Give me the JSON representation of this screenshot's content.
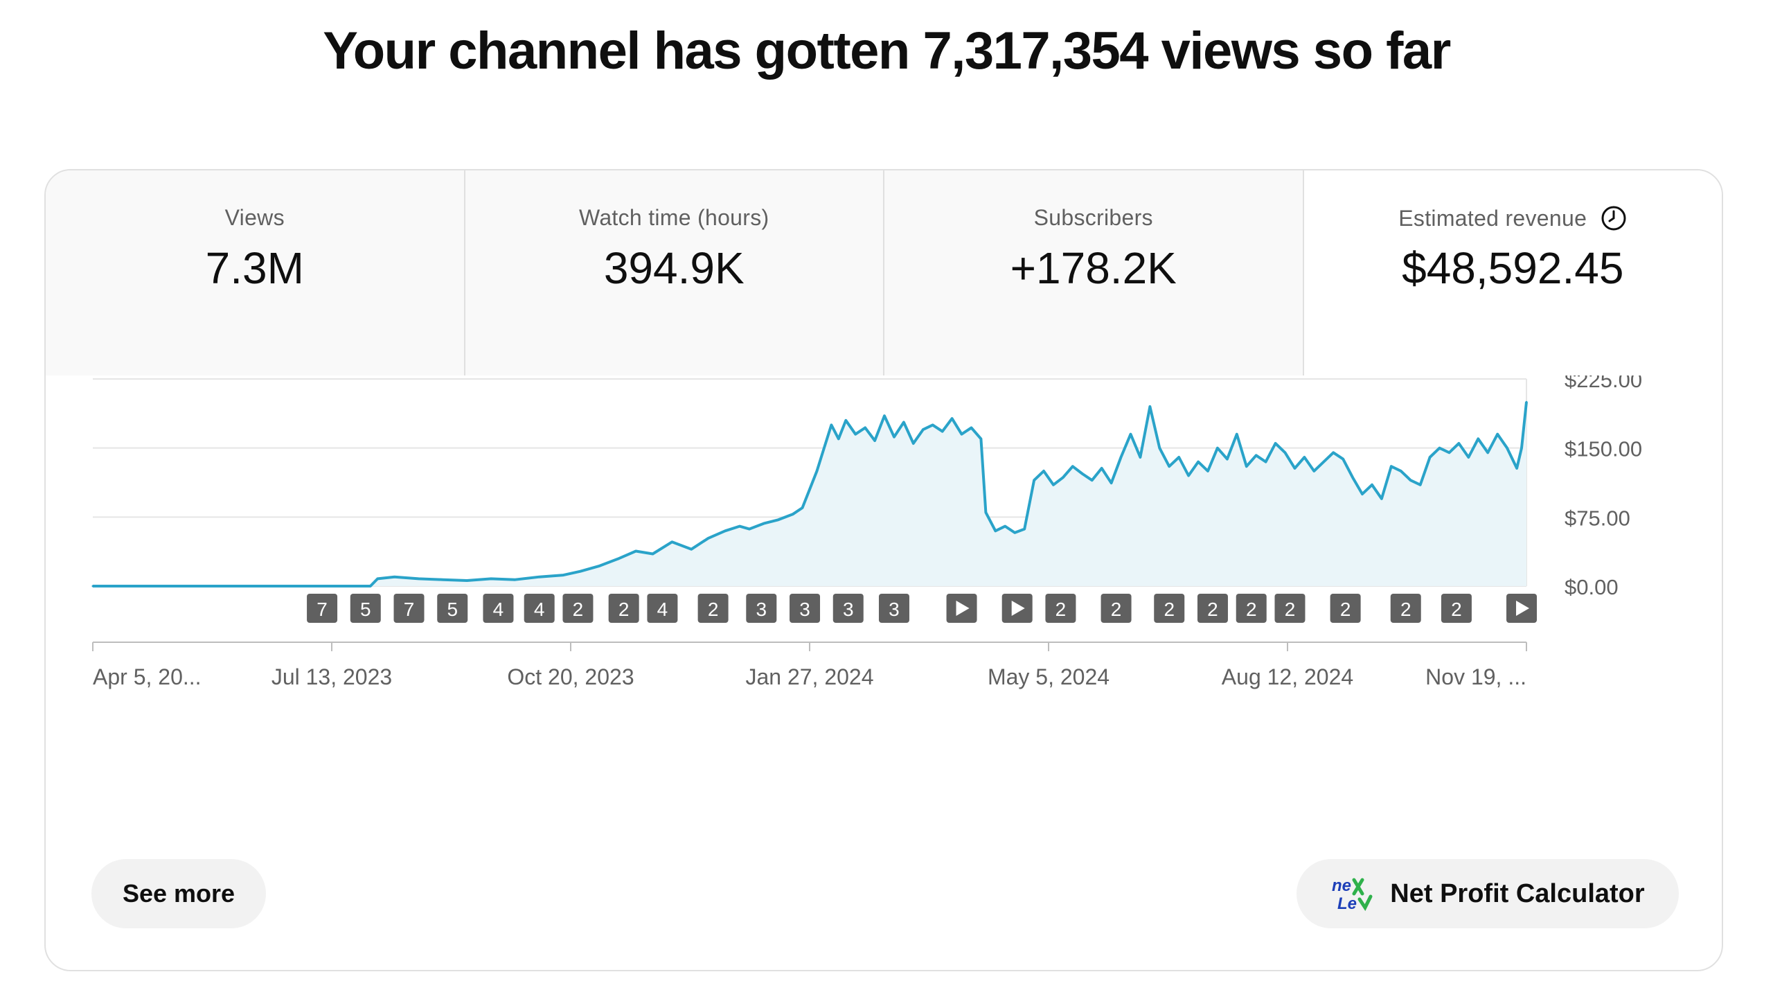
{
  "headline": "Your channel has gotten 7,317,354 views so far",
  "tabs": [
    {
      "label": "Views",
      "value": "7.3M"
    },
    {
      "label": "Watch time (hours)",
      "value": "394.9K"
    },
    {
      "label": "Subscribers",
      "value": "+178.2K"
    },
    {
      "label": "Estimated revenue",
      "value": "$48,592.45",
      "icon": "clock-icon"
    }
  ],
  "actions": {
    "see_more": "See more",
    "net_profit": "Net Profit Calculator",
    "net_profit_logo": "nex"
  },
  "colors": {
    "line": "#2aa3c9",
    "fill": "#eaf5f9",
    "marker": "#606060",
    "grid": "#e5e5e5"
  },
  "chart_data": {
    "type": "area",
    "ylim": [
      0,
      225
    ],
    "y_ticks": [
      "$225.00",
      "$150.00",
      "$75.00",
      "$0.00"
    ],
    "y_tick_values": [
      225,
      150,
      75,
      0
    ],
    "x_ticks": [
      "Apr 5, 20...",
      "Jul 13, 2023",
      "Oct 20, 2023",
      "Jan 27, 2024",
      "May 5, 2024",
      "Aug 12, 2024",
      "Nov 19, ..."
    ],
    "x_tick_days": [
      0,
      99,
      198,
      297,
      396,
      495,
      594
    ],
    "x_range_days": [
      0,
      594
    ],
    "series": [
      {
        "points": [
          [
            0,
            0
          ],
          [
            115,
            0
          ],
          [
            118,
            8
          ],
          [
            125,
            10
          ],
          [
            135,
            8
          ],
          [
            145,
            7
          ],
          [
            155,
            6
          ],
          [
            165,
            8
          ],
          [
            175,
            7
          ],
          [
            185,
            10
          ],
          [
            195,
            12
          ],
          [
            202,
            16
          ],
          [
            210,
            22
          ],
          [
            218,
            30
          ],
          [
            225,
            38
          ],
          [
            232,
            35
          ],
          [
            240,
            48
          ],
          [
            248,
            40
          ],
          [
            255,
            52
          ],
          [
            262,
            60
          ],
          [
            268,
            65
          ],
          [
            272,
            62
          ],
          [
            278,
            68
          ],
          [
            284,
            72
          ],
          [
            290,
            78
          ],
          [
            294,
            85
          ],
          [
            297,
            105
          ],
          [
            300,
            125
          ],
          [
            303,
            150
          ],
          [
            306,
            175
          ],
          [
            309,
            160
          ],
          [
            312,
            180
          ],
          [
            316,
            165
          ],
          [
            320,
            172
          ],
          [
            324,
            158
          ],
          [
            328,
            185
          ],
          [
            332,
            162
          ],
          [
            336,
            178
          ],
          [
            340,
            155
          ],
          [
            344,
            170
          ],
          [
            348,
            175
          ],
          [
            352,
            168
          ],
          [
            356,
            182
          ],
          [
            360,
            165
          ],
          [
            364,
            172
          ],
          [
            368,
            160
          ],
          [
            370,
            80
          ],
          [
            374,
            60
          ],
          [
            378,
            65
          ],
          [
            382,
            58
          ],
          [
            386,
            62
          ],
          [
            390,
            115
          ],
          [
            394,
            125
          ],
          [
            398,
            110
          ],
          [
            402,
            118
          ],
          [
            406,
            130
          ],
          [
            410,
            122
          ],
          [
            414,
            115
          ],
          [
            418,
            128
          ],
          [
            422,
            112
          ],
          [
            426,
            140
          ],
          [
            430,
            165
          ],
          [
            434,
            140
          ],
          [
            438,
            195
          ],
          [
            442,
            150
          ],
          [
            446,
            130
          ],
          [
            450,
            140
          ],
          [
            454,
            120
          ],
          [
            458,
            135
          ],
          [
            462,
            125
          ],
          [
            466,
            150
          ],
          [
            470,
            138
          ],
          [
            474,
            165
          ],
          [
            478,
            130
          ],
          [
            482,
            142
          ],
          [
            486,
            135
          ],
          [
            490,
            155
          ],
          [
            494,
            145
          ],
          [
            498,
            128
          ],
          [
            502,
            140
          ],
          [
            506,
            125
          ],
          [
            510,
            135
          ],
          [
            514,
            145
          ],
          [
            518,
            138
          ],
          [
            522,
            118
          ],
          [
            526,
            100
          ],
          [
            530,
            110
          ],
          [
            534,
            95
          ],
          [
            538,
            130
          ],
          [
            542,
            125
          ],
          [
            546,
            115
          ],
          [
            550,
            110
          ],
          [
            554,
            140
          ],
          [
            558,
            150
          ],
          [
            562,
            145
          ],
          [
            566,
            155
          ],
          [
            570,
            140
          ],
          [
            574,
            160
          ],
          [
            578,
            145
          ],
          [
            582,
            165
          ],
          [
            586,
            150
          ],
          [
            590,
            128
          ],
          [
            592,
            150
          ],
          [
            594,
            200
          ]
        ]
      }
    ],
    "markers": [
      {
        "day": 95,
        "label": "7"
      },
      {
        "day": 113,
        "label": "5"
      },
      {
        "day": 131,
        "label": "7"
      },
      {
        "day": 149,
        "label": "5"
      },
      {
        "day": 168,
        "label": "4"
      },
      {
        "day": 185,
        "label": "4"
      },
      {
        "day": 201,
        "label": "2"
      },
      {
        "day": 220,
        "label": "2"
      },
      {
        "day": 236,
        "label": "4"
      },
      {
        "day": 257,
        "label": "2"
      },
      {
        "day": 277,
        "label": "3"
      },
      {
        "day": 295,
        "label": "3"
      },
      {
        "day": 313,
        "label": "3"
      },
      {
        "day": 332,
        "label": "3"
      },
      {
        "day": 360,
        "label": "play"
      },
      {
        "day": 383,
        "label": "play"
      },
      {
        "day": 401,
        "label": "2"
      },
      {
        "day": 424,
        "label": "2"
      },
      {
        "day": 446,
        "label": "2"
      },
      {
        "day": 464,
        "label": "2"
      },
      {
        "day": 480,
        "label": "2"
      },
      {
        "day": 496,
        "label": "2"
      },
      {
        "day": 519,
        "label": "2"
      },
      {
        "day": 544,
        "label": "2"
      },
      {
        "day": 565,
        "label": "2"
      },
      {
        "day": 592,
        "label": "play"
      }
    ]
  }
}
